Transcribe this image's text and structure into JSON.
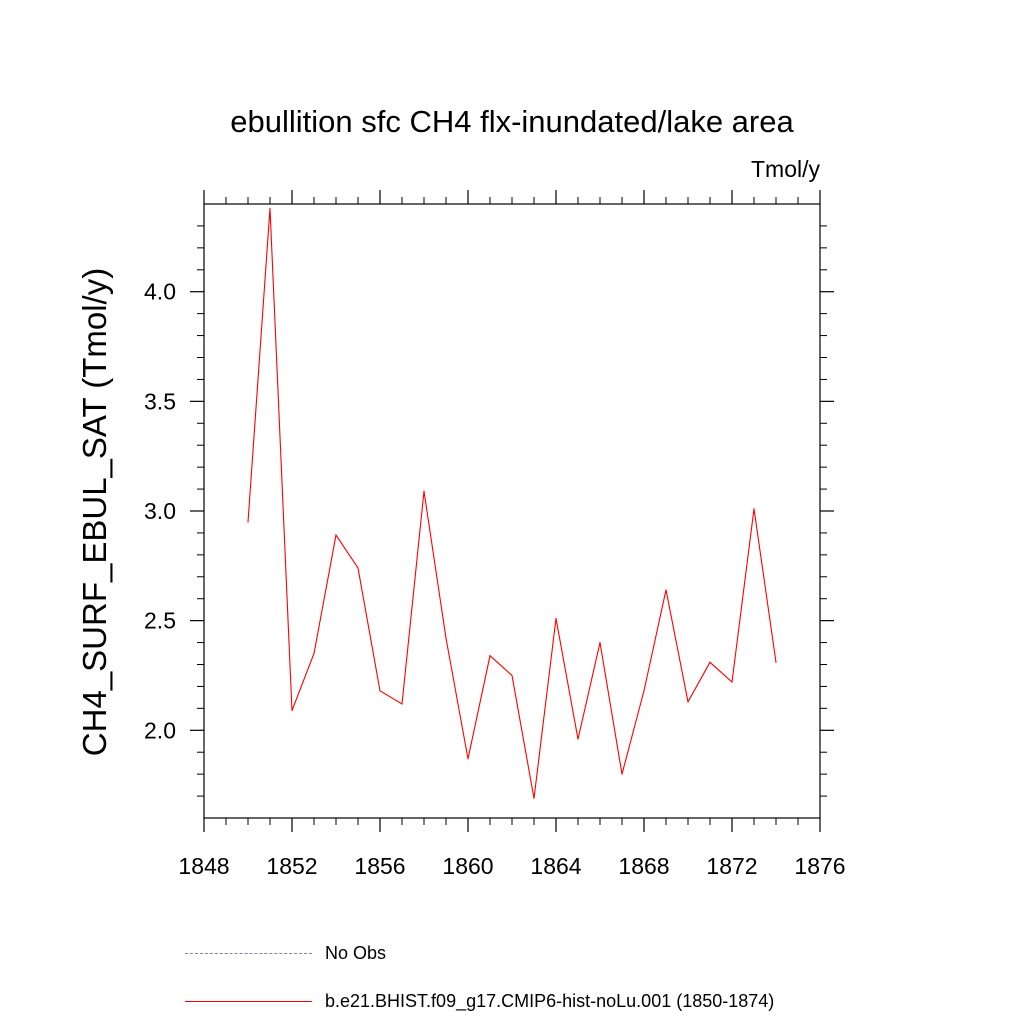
{
  "chart_data": {
    "type": "line",
    "title": "ebullition sfc CH4 flx-inundated/lake area",
    "units_label": "Tmol/y",
    "ylabel": "CH4_SURF_EBUL_SAT  (Tmol/y)",
    "xlim": [
      1848,
      1876
    ],
    "ylim": [
      1.6,
      4.4
    ],
    "x_ticks": [
      1848,
      1852,
      1856,
      1860,
      1864,
      1868,
      1872,
      1876
    ],
    "y_ticks": [
      "2.0",
      "2.5",
      "3.0",
      "3.5",
      "4.0"
    ],
    "series": [
      {
        "name": "b.e21.BHIST.f09_g17.CMIP6-hist-noLu.001 (1850-1874)",
        "color": "#ff0000",
        "x": [
          1850,
          1851,
          1852,
          1853,
          1854,
          1855,
          1856,
          1857,
          1858,
          1859,
          1860,
          1861,
          1862,
          1863,
          1864,
          1865,
          1866,
          1867,
          1868,
          1869,
          1870,
          1871,
          1872,
          1873,
          1874
        ],
        "y": [
          2.95,
          4.38,
          2.09,
          2.35,
          2.89,
          2.74,
          2.18,
          2.12,
          3.09,
          2.42,
          1.87,
          2.34,
          2.25,
          1.69,
          2.51,
          1.96,
          2.4,
          1.8,
          2.18,
          2.64,
          2.13,
          2.31,
          2.22,
          3.01,
          2.31
        ]
      }
    ],
    "legend": [
      {
        "label": "No Obs",
        "style": "dashed",
        "color": "#8080c0"
      },
      {
        "label": "b.e21.BHIST.f09_g17.CMIP6-hist-noLu.001 (1850-1874)",
        "style": "solid",
        "color": "#ff0000"
      }
    ]
  }
}
